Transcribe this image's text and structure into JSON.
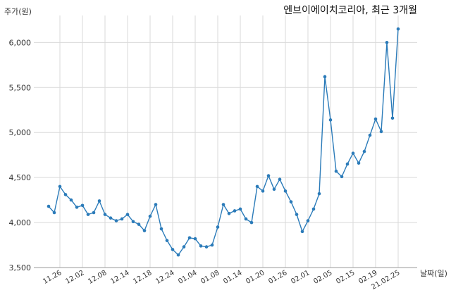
{
  "chart_data": {
    "type": "line",
    "title": "엔브이에이치코리아, 최근 3개월",
    "ylabel": "주가(원)",
    "xlabel": "날짜(일)",
    "ylim": [
      3500,
      6300
    ],
    "yticks": [
      3500,
      4000,
      4500,
      5000,
      5500,
      6000
    ],
    "ytick_labels": [
      "3,500",
      "4,000",
      "4,500",
      "5,000",
      "5,500",
      "6,000"
    ],
    "xtick_labels": [
      "11.26",
      "12.02",
      "12.08",
      "12.14",
      "12.18",
      "12.24",
      "01.04",
      "01.08",
      "01.14",
      "01.20",
      "01.26",
      "02.01",
      "02.05",
      "02.15",
      "02.19",
      "21.02.25"
    ],
    "xtick_positions": [
      2,
      6,
      10,
      14,
      18,
      22,
      26,
      30,
      34,
      38,
      42,
      46,
      50,
      54,
      58,
      62
    ],
    "grid": true,
    "color": "#2b7bb9",
    "series": [
      {
        "values": [
          4180,
          4110,
          4400,
          4310,
          4250,
          4170,
          4190,
          4090,
          4110,
          4240,
          4090,
          4050,
          4020,
          4040,
          4090,
          4010,
          3980,
          3910,
          4070,
          4200,
          3930,
          3800,
          3700,
          3640,
          3730,
          3830,
          3820,
          3740,
          3730,
          3750,
          3950,
          4200,
          4100,
          4130,
          4150,
          4040,
          4000,
          4400,
          4350,
          4520,
          4370,
          4480,
          4350,
          4230,
          4090,
          3900,
          4020,
          4150,
          4320,
          5620,
          5140,
          4570,
          4510,
          4650,
          4770,
          4660,
          4790,
          4970,
          5150,
          5010,
          6000,
          5160,
          6150
        ]
      }
    ]
  }
}
